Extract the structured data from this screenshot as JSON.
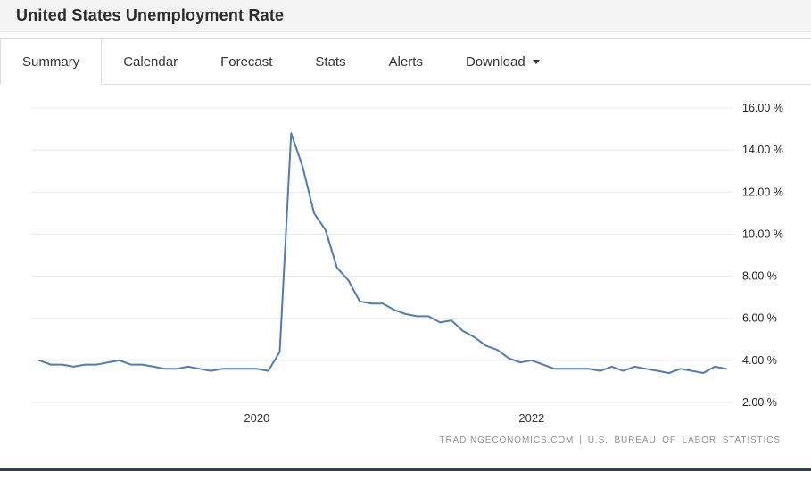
{
  "header": {
    "title": "United States Unemployment Rate"
  },
  "tabs": [
    {
      "label": "Summary",
      "active": true
    },
    {
      "label": "Calendar",
      "active": false
    },
    {
      "label": "Forecast",
      "active": false
    },
    {
      "label": "Stats",
      "active": false
    },
    {
      "label": "Alerts",
      "active": false
    },
    {
      "label": "Download",
      "active": false,
      "has_dropdown": true
    }
  ],
  "attribution": {
    "source_left": "TRADINGECONOMICS.COM",
    "separator": "|",
    "source_right": "U.S. BUREAU OF LABOR STATISTICS"
  },
  "chart_data": {
    "type": "line",
    "title": "United States Unemployment Rate",
    "unit": "%",
    "line_color": "#4e7cbb",
    "grid": true,
    "grid_color": "#e8e8e8",
    "legend": "none",
    "ylim": [
      2,
      16
    ],
    "y_ticks": [
      2,
      4,
      6,
      8,
      10,
      12,
      14,
      16
    ],
    "y_tick_suffix": " %",
    "x_ticks": [
      {
        "label": "2020",
        "x": "2020-01"
      },
      {
        "label": "2022",
        "x": "2022-01"
      }
    ],
    "x": [
      "2018-06",
      "2018-07",
      "2018-08",
      "2018-09",
      "2018-10",
      "2018-11",
      "2018-12",
      "2019-01",
      "2019-02",
      "2019-03",
      "2019-04",
      "2019-05",
      "2019-06",
      "2019-07",
      "2019-08",
      "2019-09",
      "2019-10",
      "2019-11",
      "2019-12",
      "2020-01",
      "2020-02",
      "2020-03",
      "2020-04",
      "2020-05",
      "2020-06",
      "2020-07",
      "2020-08",
      "2020-09",
      "2020-10",
      "2020-11",
      "2020-12",
      "2021-01",
      "2021-02",
      "2021-03",
      "2021-04",
      "2021-05",
      "2021-06",
      "2021-07",
      "2021-08",
      "2021-09",
      "2021-10",
      "2021-11",
      "2021-12",
      "2022-01",
      "2022-02",
      "2022-03",
      "2022-04",
      "2022-05",
      "2022-06",
      "2022-07",
      "2022-08",
      "2022-09",
      "2022-10",
      "2022-11",
      "2022-12",
      "2023-01",
      "2023-02",
      "2023-03",
      "2023-04",
      "2023-05",
      "2023-06"
    ],
    "values": [
      4.0,
      3.8,
      3.8,
      3.7,
      3.8,
      3.8,
      3.9,
      4.0,
      3.8,
      3.8,
      3.7,
      3.6,
      3.6,
      3.7,
      3.6,
      3.5,
      3.6,
      3.6,
      3.6,
      3.6,
      3.5,
      4.4,
      14.8,
      13.2,
      11.0,
      10.2,
      8.4,
      7.8,
      6.8,
      6.7,
      6.7,
      6.4,
      6.2,
      6.1,
      6.1,
      5.8,
      5.9,
      5.4,
      5.1,
      4.7,
      4.5,
      4.1,
      3.9,
      4.0,
      3.8,
      3.6,
      3.6,
      3.6,
      3.6,
      3.5,
      3.7,
      3.5,
      3.7,
      3.6,
      3.5,
      3.4,
      3.6,
      3.5,
      3.4,
      3.7,
      3.6
    ]
  }
}
